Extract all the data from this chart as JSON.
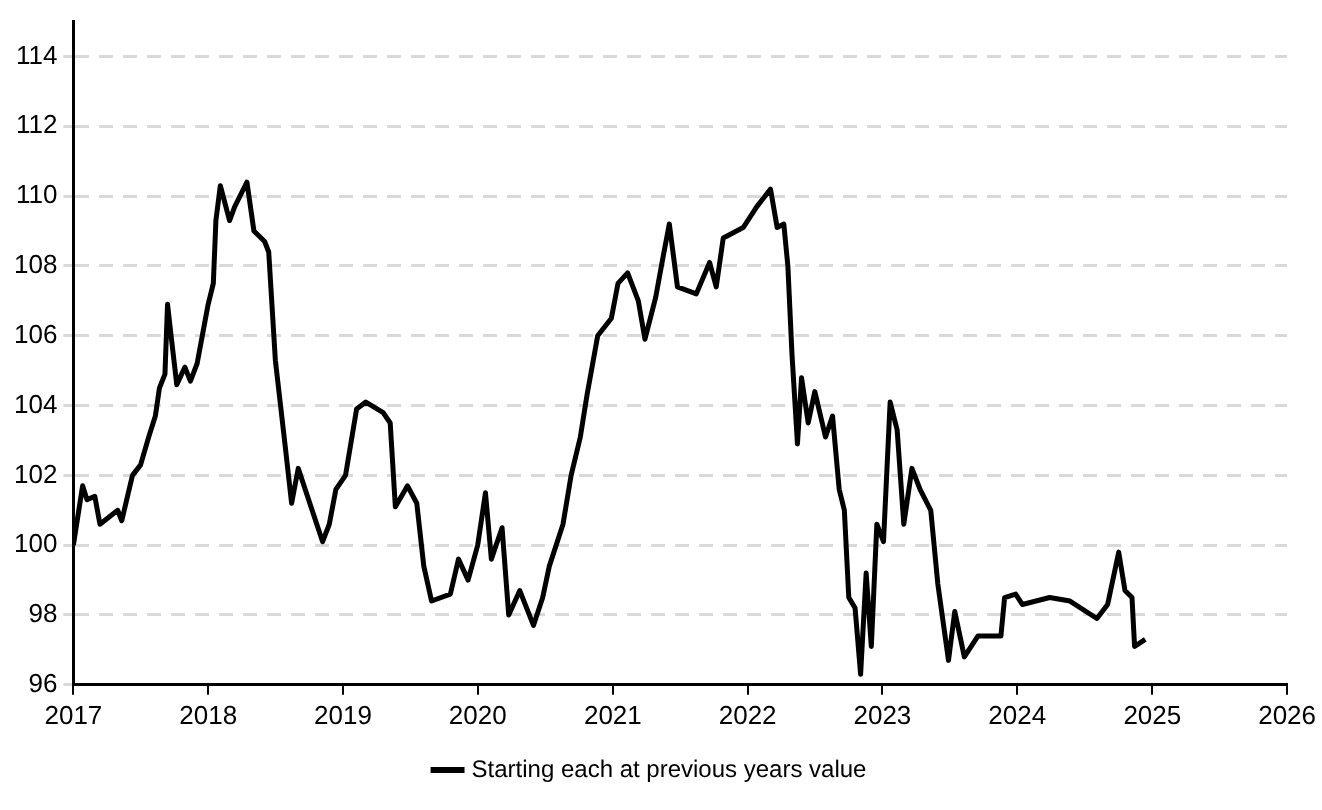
{
  "chart_data": {
    "type": "line",
    "legend": "bottom",
    "grid": "y",
    "marker": "none",
    "line_style": "solid",
    "xlim": [
      "2017",
      "2026"
    ],
    "xticks": [
      "2017",
      "2018",
      "2019",
      "2020",
      "2021",
      "2022",
      "2023",
      "2024",
      "2025",
      "2026"
    ],
    "ylim": [
      96,
      115
    ],
    "yticks": [
      96,
      98,
      100,
      102,
      104,
      106,
      108,
      110,
      112,
      114
    ],
    "x": [
      "2017-01-01",
      "2017-01-26",
      "2017-02-07",
      "2017-02-28",
      "2017-03-14",
      "2017-05-01",
      "2017-05-12",
      "2017-06-10",
      "2017-07-02",
      "2017-07-24",
      "2017-08-11",
      "2017-08-22",
      "2017-09-06",
      "2017-09-13",
      "2017-09-27",
      "2017-10-08",
      "2017-10-30",
      "2017-11-14",
      "2017-12-02",
      "2018-01-01",
      "2018-01-15",
      "2018-01-22",
      "2018-02-03",
      "2018-02-28",
      "2018-03-14",
      "2018-04-16",
      "2018-05-05",
      "2018-06-03",
      "2018-06-14",
      "2018-07-02",
      "2018-07-28",
      "2018-08-15",
      "2018-09-02",
      "2018-09-27",
      "2018-11-07",
      "2018-11-25",
      "2018-12-13",
      "2019-01-08",
      "2019-02-07",
      "2019-03-04",
      "2019-04-20",
      "2019-05-09",
      "2019-05-23",
      "2019-06-25",
      "2019-07-20",
      "2019-08-08",
      "2019-08-29",
      "2019-10-19",
      "2019-11-10",
      "2019-12-06",
      "2020-01-01",
      "2020-01-22",
      "2020-02-07",
      "2020-03-07",
      "2020-03-25",
      "2020-04-24",
      "2020-05-31",
      "2020-06-25",
      "2020-07-13",
      "2020-08-19",
      "2020-09-10",
      "2020-10-05",
      "2020-10-23",
      "2020-11-21",
      "2020-12-28",
      "2021-01-15",
      "2021-02-10",
      "2021-03-11",
      "2021-03-29",
      "2021-04-27",
      "2021-05-16",
      "2021-06-03",
      "2021-06-25",
      "2021-08-15",
      "2021-09-20",
      "2021-10-08",
      "2021-10-27",
      "2021-12-20",
      "2022-01-26",
      "2022-03-04",
      "2022-03-22",
      "2022-04-09",
      "2022-04-20",
      "2022-05-01",
      "2022-05-16",
      "2022-05-27",
      "2022-06-14",
      "2022-07-02",
      "2022-07-31",
      "2022-08-19",
      "2022-09-06",
      "2022-09-20",
      "2022-10-02",
      "2022-10-19",
      "2022-11-03",
      "2022-11-18",
      "2022-12-02",
      "2022-12-17",
      "2023-01-04",
      "2023-01-22",
      "2023-02-10",
      "2023-02-28",
      "2023-03-22",
      "2023-04-13",
      "2023-05-12",
      "2023-05-31",
      "2023-06-29",
      "2023-07-16",
      "2023-08-11",
      "2023-09-17",
      "2023-11-18",
      "2023-11-28",
      "2023-12-28",
      "2024-01-15",
      "2024-03-29",
      "2024-05-23",
      "2024-08-04",
      "2024-09-02",
      "2024-10-02",
      "2024-10-19",
      "2024-11-07",
      "2024-11-14",
      "2024-12-13"
    ],
    "series": [
      {
        "name": "Starting each at previous years value",
        "color": "#000000",
        "values": [
          100.0,
          101.7,
          101.3,
          101.4,
          100.6,
          101.0,
          100.7,
          102.0,
          102.3,
          103.1,
          103.7,
          104.5,
          104.9,
          106.9,
          105.6,
          104.6,
          105.1,
          104.7,
          105.2,
          106.9,
          107.5,
          109.3,
          110.3,
          109.3,
          109.7,
          110.4,
          109.0,
          108.7,
          108.4,
          105.3,
          102.9,
          101.2,
          102.2,
          101.4,
          100.1,
          100.6,
          101.6,
          102.0,
          103.9,
          104.1,
          103.8,
          103.5,
          101.1,
          101.7,
          101.2,
          99.4,
          98.4,
          98.6,
          99.6,
          99.0,
          100.0,
          101.5,
          99.6,
          100.5,
          98.0,
          98.7,
          97.7,
          98.5,
          99.4,
          100.6,
          102.0,
          103.1,
          104.3,
          106.0,
          106.5,
          107.5,
          107.8,
          107.0,
          105.9,
          107.1,
          108.2,
          109.2,
          107.4,
          107.2,
          108.1,
          107.4,
          108.8,
          109.1,
          109.7,
          110.2,
          109.1,
          109.2,
          108.0,
          105.5,
          102.9,
          104.8,
          103.5,
          104.4,
          103.1,
          103.7,
          101.6,
          101.0,
          98.5,
          98.2,
          96.3,
          99.2,
          97.1,
          100.6,
          100.1,
          104.1,
          103.3,
          100.6,
          102.2,
          101.6,
          101.0,
          98.9,
          96.7,
          98.1,
          96.8,
          97.4,
          97.4,
          98.5,
          98.6,
          98.3,
          98.5,
          98.4,
          97.9,
          98.3,
          99.8,
          98.7,
          98.5,
          97.1,
          97.3
        ]
      }
    ]
  }
}
